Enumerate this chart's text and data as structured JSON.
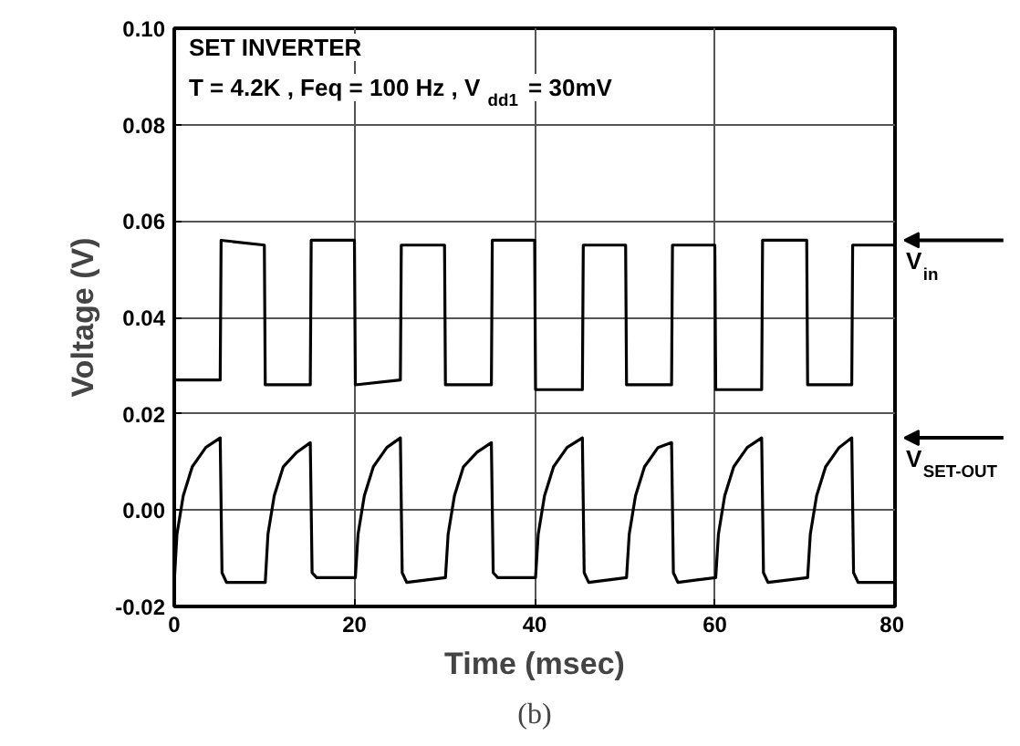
{
  "chart_data": {
    "type": "line",
    "xlabel": "Time (msec)",
    "ylabel": "Voltage (V)",
    "xlim": [
      0,
      80
    ],
    "ylim": [
      -0.02,
      0.1
    ],
    "xticks": [
      0,
      20,
      40,
      60,
      80
    ],
    "yticks": [
      {
        "value": -0.02,
        "label": "-0.02"
      },
      {
        "value": 0,
        "label": "0.00"
      },
      {
        "value": 0.02,
        "label": "0.02"
      },
      {
        "value": 0.04,
        "label": "0.04"
      },
      {
        "value": 0.06,
        "label": "0.06"
      },
      {
        "value": 0.08,
        "label": "0.08"
      },
      {
        "value": 0.1,
        "label": "0.10"
      }
    ],
    "grid": true,
    "legend": "right",
    "marker": "none",
    "line_style": "solid",
    "annotations": [
      "SET INVERTER",
      "T = 4.2K , Feq = 100 Hz , V$_{dd1}$ = 30mV",
      "(b)"
    ],
    "series": [
      {
        "name": "V$_{in}$",
        "color": "#000000",
        "x": [
          0,
          5.1,
          5.2,
          10.0,
          10.1,
          15.1,
          15.2,
          20.0,
          20.1,
          25.1,
          25.2,
          30.0,
          30.1,
          35.2,
          35.3,
          40.0,
          40.1,
          45.3,
          45.4,
          50.1,
          50.2,
          55.2,
          55.3,
          60.0,
          60.1,
          65.2,
          65.3,
          70.2,
          70.3,
          75.2,
          75.3,
          80
        ],
        "values": [
          0.027,
          0.027,
          0.056,
          0.055,
          0.026,
          0.026,
          0.056,
          0.056,
          0.026,
          0.027,
          0.055,
          0.055,
          0.026,
          0.026,
          0.056,
          0.056,
          0.025,
          0.025,
          0.055,
          0.055,
          0.026,
          0.026,
          0.055,
          0.055,
          0.025,
          0.025,
          0.056,
          0.056,
          0.026,
          0.026,
          0.055,
          0.055
        ]
      },
      {
        "name": "V$_{SET-OUT}$",
        "color": "#000000",
        "x": [
          0,
          0.3,
          1,
          2,
          3.5,
          5.1,
          5.3,
          5.8,
          10.1,
          10.4,
          11.1,
          12.1,
          13.6,
          15.1,
          15.3,
          15.8,
          20.1,
          20.4,
          21.1,
          22.1,
          23.6,
          25.1,
          25.3,
          25.8,
          30.1,
          30.4,
          31.1,
          32.1,
          33.6,
          35.2,
          35.4,
          35.9,
          40.1,
          40.4,
          41.1,
          42.1,
          43.6,
          45.3,
          45.5,
          46.0,
          50.2,
          50.5,
          51.2,
          52.2,
          53.7,
          55.2,
          55.4,
          55.9,
          60.1,
          60.4,
          61.1,
          62.1,
          63.6,
          65.2,
          65.4,
          65.9,
          70.3,
          70.6,
          71.3,
          72.3,
          73.8,
          75.2,
          75.4,
          75.9,
          80
        ],
        "values": [
          -0.015,
          -0.005,
          0.003,
          0.009,
          0.013,
          0.015,
          -0.013,
          -0.015,
          -0.015,
          -0.005,
          0.003,
          0.009,
          0.012,
          0.014,
          -0.013,
          -0.014,
          -0.014,
          -0.005,
          0.003,
          0.009,
          0.013,
          0.015,
          -0.013,
          -0.015,
          -0.014,
          -0.005,
          0.003,
          0.009,
          0.012,
          0.014,
          -0.013,
          -0.014,
          -0.014,
          -0.005,
          0.003,
          0.009,
          0.013,
          0.015,
          -0.013,
          -0.015,
          -0.014,
          -0.005,
          0.003,
          0.009,
          0.013,
          0.014,
          -0.013,
          -0.015,
          -0.014,
          -0.005,
          0.003,
          0.009,
          0.013,
          0.015,
          -0.013,
          -0.015,
          -0.014,
          -0.005,
          0.003,
          0.009,
          0.013,
          0.015,
          -0.013,
          -0.015,
          -0.015
        ]
      }
    ]
  }
}
